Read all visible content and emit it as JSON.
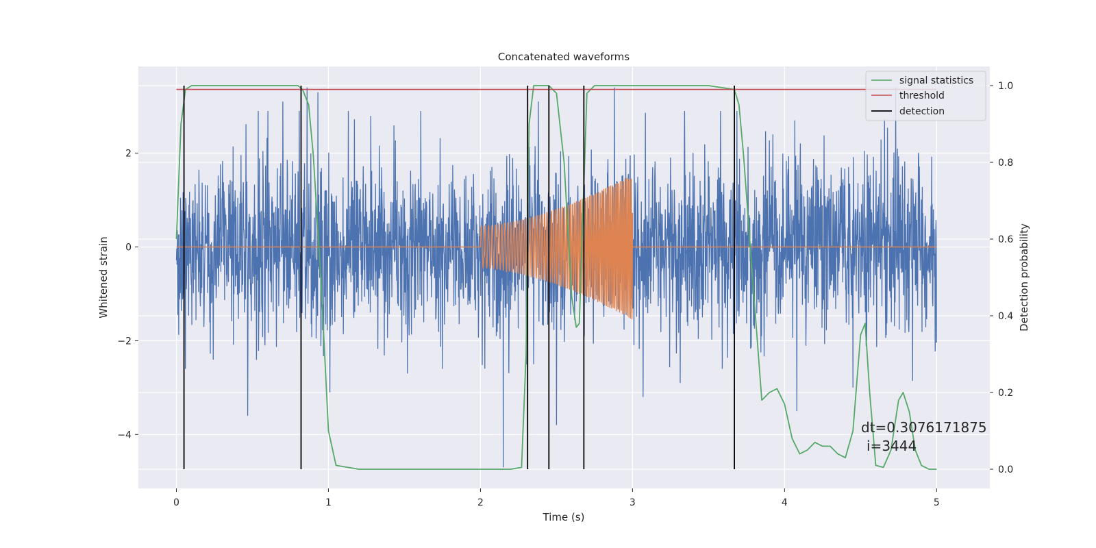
{
  "chart_data": {
    "type": "line",
    "title": "Concatenated waveforms",
    "xlabel": "Time (s)",
    "ylabel_left": "Whitened strain",
    "ylabel_right": "Detection probability",
    "xlim": [
      -0.25,
      5.35
    ],
    "ylim_left": [
      -5.15,
      3.85
    ],
    "ylim_right": [
      -0.05,
      1.05
    ],
    "x_ticks": [
      "0",
      "1",
      "2",
      "3",
      "4",
      "5"
    ],
    "x_tick_values": [
      0,
      1,
      2,
      3,
      4,
      5
    ],
    "y_left_ticks": [
      "−4",
      "−2",
      "0",
      "2"
    ],
    "y_left_tick_values": [
      -4,
      -2,
      0,
      2
    ],
    "y_right_ticks": [
      "0.0",
      "0.2",
      "0.4",
      "0.6",
      "0.8",
      "1.0"
    ],
    "y_right_tick_values": [
      0.0,
      0.2,
      0.4,
      0.6,
      0.8,
      1.0
    ],
    "grid": true,
    "legend_position": "top-right",
    "legend": [
      {
        "label": "signal statistics",
        "color": "#55a868"
      },
      {
        "label": "threshold",
        "color": "#c44e52"
      },
      {
        "label": "detection",
        "color": "#000000"
      }
    ],
    "annotation": {
      "line1": "dt=0.3076171875",
      "line2": "i=3444"
    },
    "colors": {
      "strain": "#4c72b0",
      "waveform": "#dd8452",
      "statistics": "#55a868",
      "threshold": "#c44e52",
      "detection": "#000000",
      "background": "#eaeaf2",
      "grid": "#ffffff"
    },
    "series": [
      {
        "axis": "left",
        "description_color": "#4c72b0",
        "kind": "noise",
        "x_range": [
          0,
          5
        ],
        "typical_amplitude": 1.3,
        "peaks": [
          [
            0.06,
            -2.6
          ],
          [
            0.47,
            -3.6
          ],
          [
            0.7,
            3.1
          ],
          [
            0.82,
            -2.4
          ],
          [
            0.86,
            3.4
          ],
          [
            0.93,
            3.3
          ],
          [
            1.01,
            -3.1
          ],
          [
            1.52,
            -2.7
          ],
          [
            1.75,
            -2.6
          ],
          [
            2.15,
            -4.7
          ],
          [
            2.35,
            -2.5
          ],
          [
            2.38,
            3.1
          ],
          [
            2.5,
            -3.8
          ],
          [
            2.88,
            3.4
          ],
          [
            3.07,
            -3.2
          ],
          [
            3.59,
            -2.6
          ],
          [
            4.08,
            -3.5
          ],
          [
            4.45,
            -3.0
          ],
          [
            4.73,
            3.4
          ]
        ]
      },
      {
        "axis": "left",
        "kind": "chirp",
        "x_range": [
          2.0,
          3.0
        ],
        "start_amplitude": 0.45,
        "end_amplitude": 1.55,
        "baseline": 0
      },
      {
        "name": "signal statistics",
        "axis": "right",
        "x": [
          0,
          0.03,
          0.06,
          0.1,
          0.5,
          0.8,
          0.83,
          0.87,
          0.9,
          0.95,
          1.0,
          1.05,
          1.2,
          2.2,
          2.27,
          2.3,
          2.32,
          2.35,
          2.45,
          2.5,
          2.55,
          2.6,
          2.63,
          2.65,
          2.7,
          2.75,
          3.0,
          3.5,
          3.67,
          3.7,
          3.73,
          3.78,
          3.85,
          3.9,
          3.95,
          4.0,
          4.05,
          4.1,
          4.15,
          4.2,
          4.25,
          4.3,
          4.35,
          4.4,
          4.45,
          4.5,
          4.53,
          4.56,
          4.6,
          4.65,
          4.7,
          4.75,
          4.78,
          4.82,
          4.86,
          4.9,
          4.95,
          5.0
        ],
        "values": [
          0.6,
          0.9,
          0.99,
          1.0,
          1.0,
          1.0,
          0.99,
          0.95,
          0.82,
          0.5,
          0.1,
          0.01,
          0.0,
          0.0,
          0.005,
          0.3,
          0.9,
          1.0,
          1.0,
          0.98,
          0.8,
          0.45,
          0.37,
          0.38,
          0.98,
          1.0,
          1.0,
          1.0,
          0.99,
          0.95,
          0.82,
          0.55,
          0.18,
          0.2,
          0.21,
          0.17,
          0.08,
          0.04,
          0.05,
          0.07,
          0.06,
          0.06,
          0.04,
          0.03,
          0.1,
          0.35,
          0.38,
          0.2,
          0.01,
          0.005,
          0.05,
          0.18,
          0.2,
          0.15,
          0.05,
          0.01,
          0.0,
          0.0
        ]
      },
      {
        "name": "threshold",
        "axis": "right",
        "x": [
          0,
          5
        ],
        "values": [
          0.99,
          0.99
        ]
      }
    ],
    "detections": [
      0.05,
      0.82,
      2.31,
      2.45,
      2.68,
      3.67
    ]
  }
}
